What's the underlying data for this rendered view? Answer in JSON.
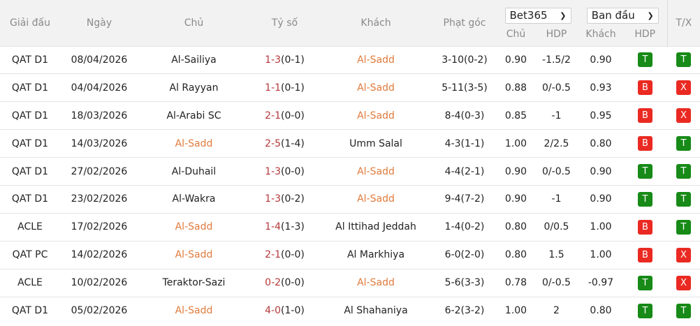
{
  "header": {
    "league": "Giải đấu",
    "date": "Ngày",
    "home": "Chủ",
    "score": "Tỷ số",
    "away": "Khách",
    "corners": "Phạt góc",
    "bookmaker_select": "Bet365",
    "odds_type_select": "Ban đầu",
    "odds_home": "Chủ",
    "odds_hdp": "HDP",
    "odds_away": "Khách",
    "result_hdp": "HDP",
    "result_tx": "T/X"
  },
  "colors": {
    "highlight_team": "#e07b3c",
    "score": "#b5383a",
    "win_badge": "#178a17",
    "lose_badge": "#ea2a22"
  },
  "rows": [
    {
      "league": "QAT D1",
      "date": "08/04/2026",
      "home": "Al-Sailiya",
      "ft": "1-3",
      "ht": "(0-1)",
      "away": "Al-Sadd",
      "hl": "away",
      "corners": "3-10(0-2)",
      "oh": "0.90",
      "hdp": "-1.5/2",
      "oa": "0.90",
      "rh": "T",
      "rt": "T"
    },
    {
      "league": "QAT D1",
      "date": "04/04/2026",
      "home": "Al Rayyan",
      "ft": "1-1",
      "ht": "(0-1)",
      "away": "Al-Sadd",
      "hl": "away",
      "corners": "5-11(3-5)",
      "oh": "0.88",
      "hdp": "0/-0.5",
      "oa": "0.93",
      "rh": "B",
      "rt": "X"
    },
    {
      "league": "QAT D1",
      "date": "18/03/2026",
      "home": "Al-Arabi SC",
      "ft": "2-1",
      "ht": "(0-0)",
      "away": "Al-Sadd",
      "hl": "away",
      "corners": "8-4(0-3)",
      "oh": "0.85",
      "hdp": "-1",
      "oa": "0.95",
      "rh": "B",
      "rt": "X"
    },
    {
      "league": "QAT D1",
      "date": "14/03/2026",
      "home": "Al-Sadd",
      "ft": "2-5",
      "ht": "(1-4)",
      "away": "Umm Salal",
      "hl": "home",
      "corners": "4-3(1-1)",
      "oh": "1.00",
      "hdp": "2/2.5",
      "oa": "0.80",
      "rh": "B",
      "rt": "T"
    },
    {
      "league": "QAT D1",
      "date": "27/02/2026",
      "home": "Al-Duhail",
      "ft": "1-3",
      "ht": "(0-0)",
      "away": "Al-Sadd",
      "hl": "away",
      "corners": "4-4(2-1)",
      "oh": "0.90",
      "hdp": "0/-0.5",
      "oa": "0.90",
      "rh": "T",
      "rt": "T"
    },
    {
      "league": "QAT D1",
      "date": "23/02/2026",
      "home": "Al-Wakra",
      "ft": "1-3",
      "ht": "(0-2)",
      "away": "Al-Sadd",
      "hl": "away",
      "corners": "9-4(7-2)",
      "oh": "0.90",
      "hdp": "-1",
      "oa": "0.90",
      "rh": "T",
      "rt": "T"
    },
    {
      "league": "ACLE",
      "date": "17/02/2026",
      "home": "Al-Sadd",
      "ft": "1-4",
      "ht": "(1-3)",
      "away": "Al Ittihad Jeddah",
      "hl": "home",
      "corners": "1-4(0-2)",
      "oh": "0.80",
      "hdp": "0/0.5",
      "oa": "1.00",
      "rh": "B",
      "rt": "T"
    },
    {
      "league": "QAT PC",
      "date": "14/02/2026",
      "home": "Al-Sadd",
      "ft": "2-1",
      "ht": "(0-0)",
      "away": "Al Markhiya",
      "hl": "home",
      "corners": "6-0(2-0)",
      "oh": "0.80",
      "hdp": "1.5",
      "oa": "1.00",
      "rh": "B",
      "rt": "X"
    },
    {
      "league": "ACLE",
      "date": "10/02/2026",
      "home": "Teraktor-Sazi",
      "ft": "0-2",
      "ht": "(0-0)",
      "away": "Al-Sadd",
      "hl": "away",
      "corners": "5-6(3-3)",
      "oh": "0.78",
      "hdp": "0/-0.5",
      "oa": "-0.97",
      "rh": "T",
      "rt": "X"
    },
    {
      "league": "QAT D1",
      "date": "05/02/2026",
      "home": "Al-Sadd",
      "ft": "4-0",
      "ht": "(1-0)",
      "away": "Al Shahaniya",
      "hl": "home",
      "corners": "6-2(3-2)",
      "oh": "1.00",
      "hdp": "2",
      "oa": "0.80",
      "rh": "T",
      "rt": "T"
    }
  ]
}
